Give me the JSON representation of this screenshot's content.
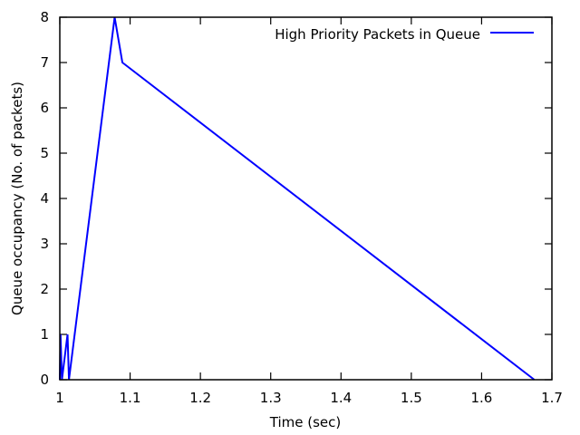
{
  "chart_data": {
    "type": "line",
    "xlabel": "Time (sec)",
    "ylabel": "Queue occupancy (No. of packets)",
    "xlim": [
      1,
      1.7
    ],
    "ylim": [
      0,
      8
    ],
    "x_ticks": [
      1,
      1.1,
      1.2,
      1.3,
      1.4,
      1.5,
      1.6,
      1.7
    ],
    "x_tick_labels": [
      "1",
      "1.1",
      "1.2",
      "1.3",
      "1.4",
      "1.5",
      "1.6",
      "1.7"
    ],
    "y_ticks": [
      0,
      1,
      2,
      3,
      4,
      5,
      6,
      7,
      8
    ],
    "y_tick_labels": [
      "0",
      "1",
      "2",
      "3",
      "4",
      "5",
      "6",
      "7",
      "8"
    ],
    "grid": false,
    "legend_position": "top-right",
    "series": [
      {
        "name": "High Priority Packets in Queue",
        "color": "#0000ff",
        "points": [
          {
            "x": 1.0,
            "y": 0
          },
          {
            "x": 1.001,
            "y": 1
          },
          {
            "x": 1.003,
            "y": 0
          },
          {
            "x": 1.011,
            "y": 1
          },
          {
            "x": 1.013,
            "y": 0
          },
          {
            "x": 1.078,
            "y": 8
          },
          {
            "x": 1.089,
            "y": 7
          },
          {
            "x": 1.675,
            "y": 0
          }
        ]
      }
    ]
  }
}
